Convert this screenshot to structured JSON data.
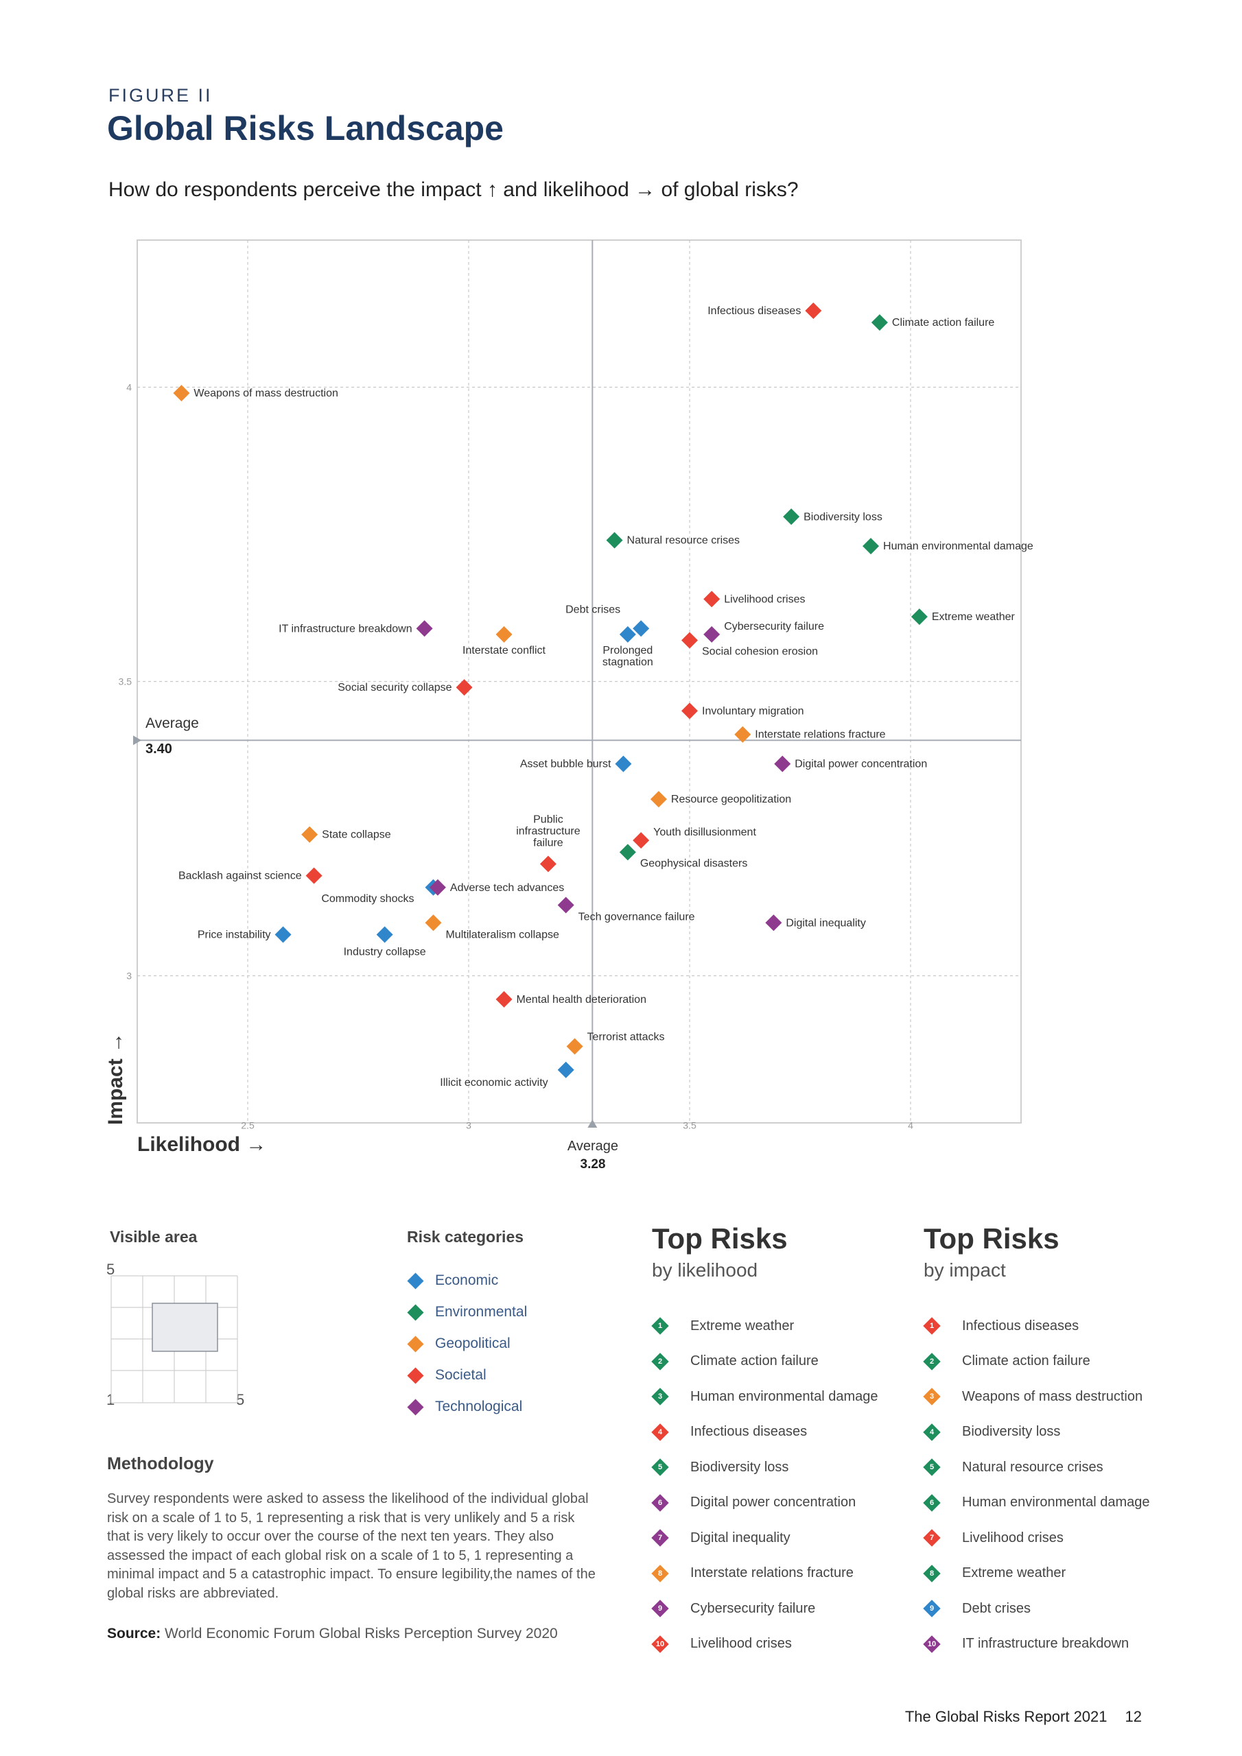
{
  "figure_label": "FIGURE II",
  "title": "Global Risks Landscape",
  "question": "How do respondents perceive the impact ↑ and likelihood → of global risks?",
  "colors": {
    "economic": "#2f86cb",
    "environmental": "#1e8f5c",
    "geopolitical": "#f08c30",
    "societal": "#ea4335",
    "technological": "#8e3a8e"
  },
  "chart_data": {
    "type": "scatter",
    "xlabel": "Likelihood →",
    "ylabel": "Impact →",
    "xlim": [
      2.25,
      4.25
    ],
    "ylim": [
      2.75,
      4.25
    ],
    "x_ticks": [
      "2.5",
      "3",
      "3.5",
      "4"
    ],
    "y_ticks": [
      "3",
      "3.5",
      "4"
    ],
    "average_x": {
      "label": "Average",
      "value": "3.28"
    },
    "average_y": {
      "label": "Average",
      "value": "3.40"
    },
    "grid": true,
    "points": [
      {
        "label": "Infectious diseases",
        "category": "societal",
        "x": 3.78,
        "y": 4.13
      },
      {
        "label": "Climate action failure",
        "category": "environmental",
        "x": 3.93,
        "y": 4.11
      },
      {
        "label": "Weapons of mass destruction",
        "category": "geopolitical",
        "x": 2.35,
        "y": 3.99
      },
      {
        "label": "Biodiversity loss",
        "category": "environmental",
        "x": 3.73,
        "y": 3.78
      },
      {
        "label": "Natural resource crises",
        "category": "environmental",
        "x": 3.33,
        "y": 3.74
      },
      {
        "label": "Human environmental damage",
        "category": "environmental",
        "x": 3.91,
        "y": 3.73
      },
      {
        "label": "Livelihood crises",
        "category": "societal",
        "x": 3.55,
        "y": 3.64
      },
      {
        "label": "Extreme weather",
        "category": "environmental",
        "x": 4.02,
        "y": 3.61
      },
      {
        "label": "Debt crises",
        "category": "economic",
        "x": 3.39,
        "y": 3.59
      },
      {
        "label": "Prolonged stagnation",
        "category": "economic",
        "x": 3.36,
        "y": 3.58
      },
      {
        "label": "Cybersecurity failure",
        "category": "technological",
        "x": 3.55,
        "y": 3.58
      },
      {
        "label": "Social cohesion erosion",
        "category": "societal",
        "x": 3.5,
        "y": 3.57
      },
      {
        "label": "IT infrastructure breakdown",
        "category": "technological",
        "x": 2.9,
        "y": 3.59
      },
      {
        "label": "Interstate conflict",
        "category": "geopolitical",
        "x": 3.08,
        "y": 3.58
      },
      {
        "label": "Social security collapse",
        "category": "societal",
        "x": 2.99,
        "y": 3.49
      },
      {
        "label": "Involuntary migration",
        "category": "societal",
        "x": 3.5,
        "y": 3.45
      },
      {
        "label": "Interstate relations fracture",
        "category": "geopolitical",
        "x": 3.62,
        "y": 3.41
      },
      {
        "label": "Asset bubble burst",
        "category": "economic",
        "x": 3.35,
        "y": 3.36
      },
      {
        "label": "Digital power concentration",
        "category": "technological",
        "x": 3.71,
        "y": 3.36
      },
      {
        "label": "Resource geopolitization",
        "category": "geopolitical",
        "x": 3.43,
        "y": 3.3
      },
      {
        "label": "State collapse",
        "category": "geopolitical",
        "x": 2.64,
        "y": 3.24
      },
      {
        "label": "Youth disillusionment",
        "category": "societal",
        "x": 3.39,
        "y": 3.23
      },
      {
        "label": "Geophysical disasters",
        "category": "environmental",
        "x": 3.36,
        "y": 3.21
      },
      {
        "label": "Public infrastructure failure",
        "category": "societal",
        "x": 3.18,
        "y": 3.19
      },
      {
        "label": "Backlash against science",
        "category": "societal",
        "x": 2.65,
        "y": 3.17
      },
      {
        "label": "Commodity shocks",
        "category": "economic",
        "x": 2.92,
        "y": 3.15
      },
      {
        "label": "Adverse tech advances",
        "category": "technological",
        "x": 2.93,
        "y": 3.15
      },
      {
        "label": "Tech governance failure",
        "category": "technological",
        "x": 3.22,
        "y": 3.12
      },
      {
        "label": "Multilateralism collapse",
        "category": "geopolitical",
        "x": 2.92,
        "y": 3.09
      },
      {
        "label": "Digital inequality",
        "category": "technological",
        "x": 3.69,
        "y": 3.09
      },
      {
        "label": "Price instability",
        "category": "economic",
        "x": 2.58,
        "y": 3.07
      },
      {
        "label": "Industry collapse",
        "category": "economic",
        "x": 2.81,
        "y": 3.07
      },
      {
        "label": "Mental health deterioration",
        "category": "societal",
        "x": 3.08,
        "y": 2.96
      },
      {
        "label": "Terrorist attacks",
        "category": "geopolitical",
        "x": 3.24,
        "y": 2.88
      },
      {
        "label": "Illicit economic activity",
        "category": "economic",
        "x": 3.22,
        "y": 2.84
      }
    ]
  },
  "visible_area": {
    "title": "Visible area",
    "top_label": "5",
    "min_label": "1",
    "max_label": "5"
  },
  "risk_categories": {
    "title": "Risk categories",
    "items": [
      {
        "label": "Economic",
        "key": "economic"
      },
      {
        "label": "Environmental",
        "key": "environmental"
      },
      {
        "label": "Geopolitical",
        "key": "geopolitical"
      },
      {
        "label": "Societal",
        "key": "societal"
      },
      {
        "label": "Technological",
        "key": "technological"
      }
    ]
  },
  "methodology": {
    "title": "Methodology",
    "body": "Survey respondents were asked to assess the likelihood of the individual global risk on a scale of 1 to 5, 1 representing a risk that is very unlikely and 5 a risk that is very likely to occur over the course of the next ten years. They also assessed the impact of each global risk on a scale of 1 to 5, 1 representing a minimal impact and 5 a catastrophic impact. To ensure legibility,the names of the global risks are abbreviated.",
    "source_label": "Source:",
    "source_text": "World Economic Forum Global Risks Perception Survey 2020"
  },
  "top_risks_likelihood": {
    "title": "Top Risks",
    "subtitle": "by likelihood",
    "items": [
      {
        "num": "1",
        "label": "Extreme weather",
        "category": "environmental"
      },
      {
        "num": "2",
        "label": "Climate action failure",
        "category": "environmental"
      },
      {
        "num": "3",
        "label": "Human environmental damage",
        "category": "environmental"
      },
      {
        "num": "4",
        "label": "Infectious diseases",
        "category": "societal"
      },
      {
        "num": "5",
        "label": "Biodiversity loss",
        "category": "environmental"
      },
      {
        "num": "6",
        "label": "Digital power concentration",
        "category": "technological"
      },
      {
        "num": "7",
        "label": "Digital inequality",
        "category": "technological"
      },
      {
        "num": "8",
        "label": "Interstate relations fracture",
        "category": "geopolitical"
      },
      {
        "num": "9",
        "label": "Cybersecurity failure",
        "category": "technological"
      },
      {
        "num": "10",
        "label": "Livelihood crises",
        "category": "societal"
      }
    ]
  },
  "top_risks_impact": {
    "title": "Top Risks",
    "subtitle": "by impact",
    "items": [
      {
        "num": "1",
        "label": "Infectious diseases",
        "category": "societal"
      },
      {
        "num": "2",
        "label": "Climate action failure",
        "category": "environmental"
      },
      {
        "num": "3",
        "label": "Weapons of mass destruction",
        "category": "geopolitical"
      },
      {
        "num": "4",
        "label": "Biodiversity loss",
        "category": "environmental"
      },
      {
        "num": "5",
        "label": "Natural resource crises",
        "category": "environmental"
      },
      {
        "num": "6",
        "label": "Human environmental damage",
        "category": "environmental"
      },
      {
        "num": "7",
        "label": "Livelihood crises",
        "category": "societal"
      },
      {
        "num": "8",
        "label": "Extreme weather",
        "category": "environmental"
      },
      {
        "num": "9",
        "label": "Debt crises",
        "category": "economic"
      },
      {
        "num": "10",
        "label": "IT infrastructure breakdown",
        "category": "technological"
      }
    ]
  },
  "footer": {
    "report": "The Global Risks Report 2021",
    "page": "12"
  }
}
